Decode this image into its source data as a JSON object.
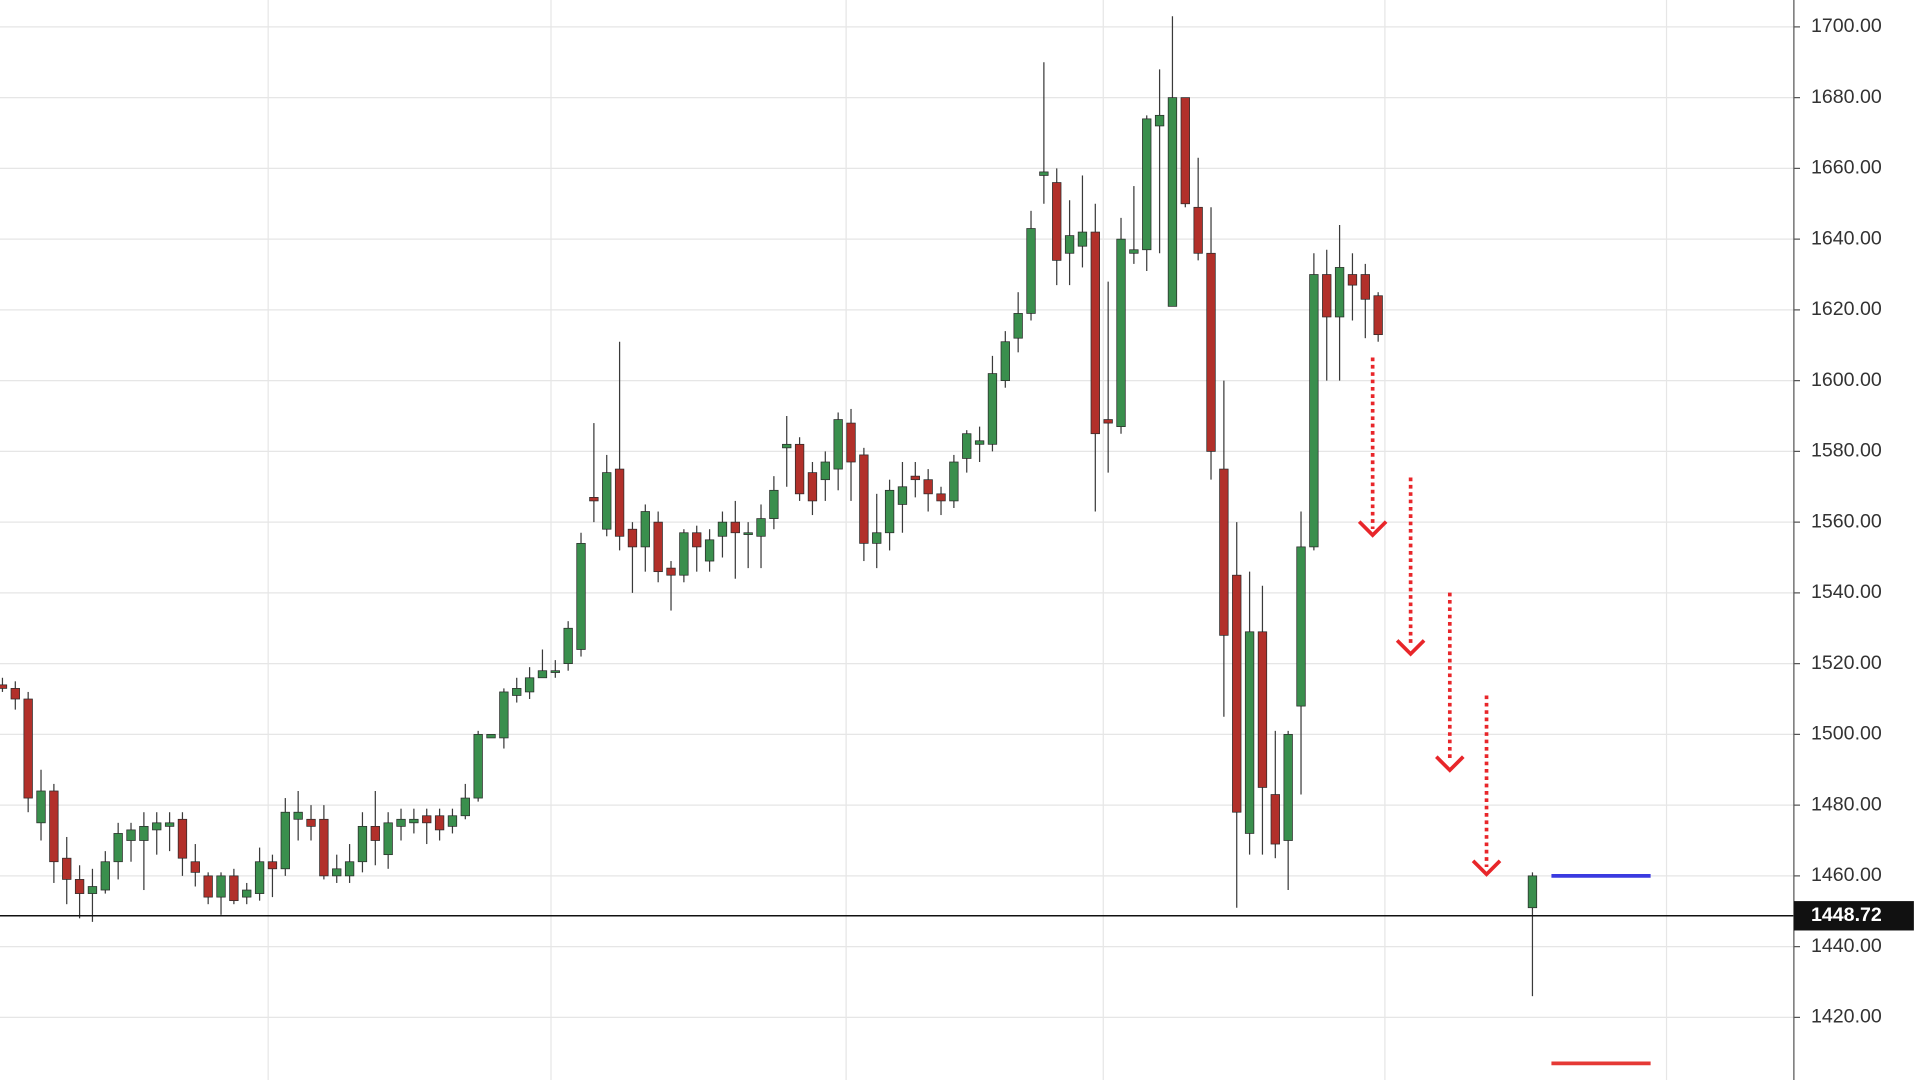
{
  "chart_data": {
    "type": "candlestick",
    "open": [
      1514,
      1513,
      1510,
      1475,
      1484,
      1465,
      1459,
      1455,
      1456,
      1464,
      1470,
      1470,
      1473,
      1474,
      1476,
      1464,
      1460,
      1454,
      1460,
      1454,
      1455,
      1464,
      1462,
      1476,
      1476,
      1476,
      1460,
      1460,
      1464,
      1474,
      1466,
      1474,
      1475,
      1477,
      1477,
      1474,
      1477,
      1482,
      1499,
      1499,
      1511,
      1512,
      1516,
      1518,
      1520,
      1524,
      1567,
      1558,
      1575,
      1558,
      1553,
      1560,
      1547,
      1545,
      1557,
      1549,
      1556,
      1560,
      1557,
      1556,
      1561,
      1581,
      1582,
      1574,
      1572,
      1575,
      1588,
      1579,
      1554,
      1557,
      1565,
      1573,
      1572,
      1568,
      1566,
      1578,
      1582,
      1582,
      1600,
      1612,
      1619,
      1658,
      1656,
      1636,
      1638,
      1642,
      1589,
      1587,
      1636,
      1637,
      1672,
      1621,
      1680,
      1649,
      1636,
      1575,
      1545,
      1472,
      1529,
      1483,
      1470,
      1508,
      1553,
      1630,
      1618,
      1630,
      1630,
      1624,
      null,
      null,
      null,
      null,
      null,
      null,
      null,
      null,
      null,
      null,
      null,
      1451
    ],
    "high": [
      1516,
      1515,
      1512,
      1490,
      1486,
      1471,
      1463,
      1462,
      1467,
      1475,
      1475,
      1478,
      1478,
      1478,
      1478,
      1469,
      1461,
      1461,
      1462,
      1458,
      1468,
      1466,
      1482,
      1484,
      1480,
      1480,
      1466,
      1469,
      1478,
      1484,
      1478,
      1479,
      1479,
      1479,
      1479,
      1479,
      1486,
      1501,
      1500,
      1513,
      1516,
      1519,
      1524,
      1521,
      1532,
      1557,
      1588,
      1579,
      1611,
      1560,
      1565,
      1563,
      1549,
      1558,
      1559,
      1558,
      1563,
      1566,
      1560,
      1565,
      1573,
      1590,
      1584,
      1577,
      1580,
      1591,
      1592,
      1581,
      1568,
      1572,
      1577,
      1577,
      1575,
      1570,
      1579,
      1586,
      1587,
      1607,
      1614,
      1625,
      1648,
      1690,
      1660,
      1651,
      1658,
      1650,
      1628,
      1646,
      1655,
      1675,
      1688,
      1703,
      1680,
      1663,
      1649,
      1600,
      1560,
      1546,
      1542,
      1501,
      1501,
      1563,
      1636,
      1637,
      1644,
      1636,
      1633,
      1625,
      null,
      null,
      null,
      null,
      null,
      null,
      null,
      null,
      null,
      null,
      null,
      1461
    ],
    "low": [
      1512,
      1507,
      1478,
      1470,
      1458,
      1452,
      1448,
      1447,
      1455,
      1459,
      1464,
      1456,
      1466,
      1467,
      1460,
      1457,
      1452,
      1449,
      1452,
      1452,
      1453,
      1454,
      1460,
      1470,
      1470,
      1459,
      1458,
      1458,
      1461,
      1463,
      1462,
      1470,
      1472,
      1469,
      1470,
      1472,
      1476,
      1481,
      1499,
      1496,
      1509,
      1510,
      1516,
      1516,
      1518,
      1522,
      1560,
      1556,
      1552,
      1540,
      1546,
      1543,
      1535,
      1543,
      1546,
      1546,
      1550,
      1544,
      1547,
      1547,
      1558,
      1570,
      1566,
      1562,
      1566,
      1569,
      1566,
      1549,
      1547,
      1552,
      1557,
      1567,
      1563,
      1562,
      1564,
      1574,
      1577,
      1580,
      1598,
      1608,
      1617,
      1650,
      1627,
      1627,
      1632,
      1563,
      1574,
      1585,
      1633,
      1631,
      1636,
      1621,
      1649,
      1634,
      1572,
      1505,
      1451,
      1466,
      1466,
      1465,
      1456,
      1483,
      1552,
      1600,
      1600,
      1617,
      1612,
      1611,
      null,
      null,
      null,
      null,
      null,
      null,
      null,
      null,
      null,
      null,
      null,
      1426
    ],
    "close": [
      1513,
      1510,
      1482,
      1484,
      1464,
      1459,
      1455,
      1457,
      1464,
      1472,
      1473,
      1474,
      1475,
      1475,
      1465,
      1461,
      1454,
      1460,
      1453,
      1456,
      1464,
      1462,
      1478,
      1478,
      1474,
      1460,
      1462,
      1464,
      1474,
      1470,
      1475,
      1476,
      1476,
      1475,
      1473,
      1477,
      1482,
      1500,
      1500,
      1512,
      1513,
      1516,
      1518,
      1518,
      1530,
      1554,
      1566,
      1574,
      1556,
      1553,
      1563,
      1546,
      1545,
      1557,
      1553,
      1555,
      1560,
      1557,
      1557,
      1561,
      1569,
      1582,
      1568,
      1566,
      1577,
      1589,
      1577,
      1554,
      1557,
      1569,
      1570,
      1572,
      1568,
      1566,
      1577,
      1585,
      1583,
      1602,
      1611,
      1619,
      1643,
      1659,
      1634,
      1641,
      1642,
      1585,
      1588,
      1640,
      1637,
      1674,
      1675,
      1680,
      1650,
      1636,
      1580,
      1528,
      1478,
      1529,
      1485,
      1469,
      1500,
      1553,
      1630,
      1618,
      1632,
      1627,
      1623,
      1613,
      null,
      null,
      null,
      null,
      null,
      null,
      null,
      null,
      null,
      null,
      null,
      1460
    ],
    "up_color": "#3a8f4d",
    "down_color": "#b2302a",
    "ylim": [
      1402.3,
      1707.6
    ],
    "yticks": [
      {
        "value": 1420,
        "label": "1420.00"
      },
      {
        "value": 1440,
        "label": "1440.00"
      },
      {
        "value": 1460,
        "label": "1460.00"
      },
      {
        "value": 1480,
        "label": "1480.00"
      },
      {
        "value": 1500,
        "label": "1500.00"
      },
      {
        "value": 1520,
        "label": "1520.00"
      },
      {
        "value": 1540,
        "label": "1540.00"
      },
      {
        "value": 1560,
        "label": "1560.00"
      },
      {
        "value": 1580,
        "label": "1580.00"
      },
      {
        "value": 1600,
        "label": "1600.00"
      },
      {
        "value": 1620,
        "label": "1620.00"
      },
      {
        "value": 1640,
        "label": "1640.00"
      },
      {
        "value": 1660,
        "label": "1660.00"
      },
      {
        "value": 1680,
        "label": "1680.00"
      },
      {
        "value": 1700,
        "label": "1700.00"
      }
    ],
    "grid": true,
    "last_price": 1448.72,
    "levels": [
      {
        "value": 1460,
        "color": "#3a3ae0"
      },
      {
        "value": 1407,
        "color": "#e53935"
      }
    ]
  }
}
